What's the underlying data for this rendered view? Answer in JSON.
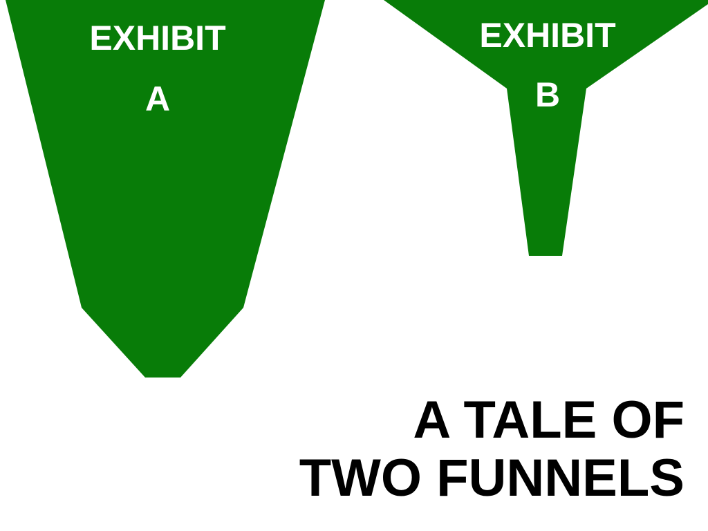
{
  "colors": {
    "funnel_fill": "#087C08",
    "label_text": "#FFFFFF",
    "title_text": "#000000",
    "background": "#FFFFFF"
  },
  "exhibit_a": {
    "line1": "EXHIBIT",
    "line2": "A"
  },
  "exhibit_b": {
    "line1": "EXHIBIT",
    "line2": "B"
  },
  "title": {
    "line1": "A TALE OF",
    "line2": "TWO FUNNELS"
  }
}
